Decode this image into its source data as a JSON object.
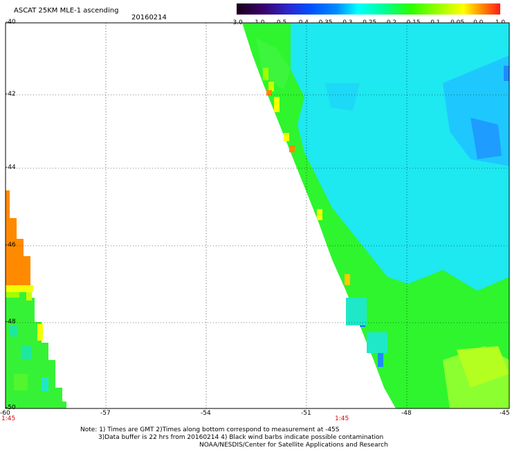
{
  "header": {
    "title": "ASCAT 25KM MLE-1 ascending",
    "date": "20160214"
  },
  "colorbar": {
    "labels": [
      "-3.0",
      "-1.0",
      "-0.5",
      "-0.4",
      "-0.35",
      "-0.3",
      "-0.25",
      "-0.2",
      "-0.15",
      "-0.1",
      "-0.05",
      "0.0",
      "1.0"
    ],
    "colors": [
      "#1a001a",
      "#3a006a",
      "#2a2ad0",
      "#0050ff",
      "#008cff",
      "#00c8ff",
      "#00ffff",
      "#00ff96",
      "#2aff00",
      "#aaff00",
      "#ffff00",
      "#ff8c00",
      "#ff0000"
    ]
  },
  "map": {
    "lat_labels": [
      "-40",
      "-42",
      "-44",
      "-46",
      "-48",
      "-50"
    ],
    "lon_labels": [
      "-60",
      "-57",
      "-54",
      "-51",
      "-48",
      "-45"
    ],
    "times": [
      "1:45",
      "1:45"
    ],
    "colors": {
      "ocean_green": "#2ef52e",
      "ocean_cyan": "#1ee8f0",
      "orange": "#ff8a00",
      "yellow": "#f2ff00",
      "blue": "#1e8cff"
    }
  },
  "footer": {
    "line1": "Note: 1) Times are GMT 2)Times along bottom correspond to measurement at -45S",
    "line2": "3)Data buffer is 22 hrs from 20160214 4) Black wind barbs indicate possible contamination",
    "line3": "NOAA/NESDIS/Center for Satellite Applications and Research"
  }
}
